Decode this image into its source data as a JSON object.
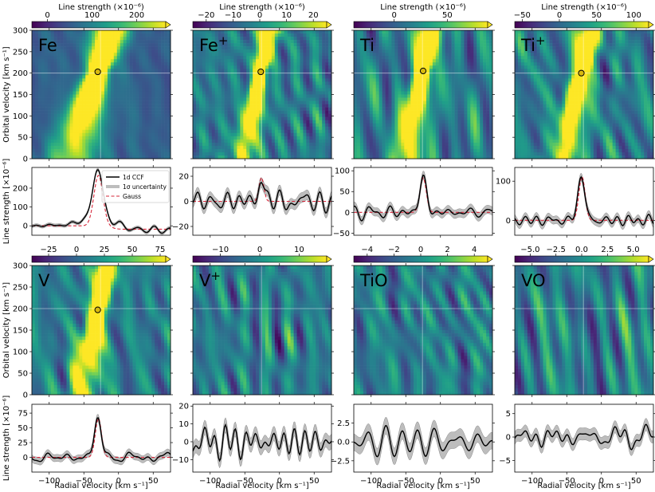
{
  "chart_data": {
    "type": "heatmap",
    "x_label": "Radial velocity [km s⁻¹]",
    "map_y_label": "Orbital velocity [km s⁻¹]",
    "ccf_y_label": "Line strength [×10⁻⁶]",
    "colorbar_label": "Line strength (×10⁻⁶)",
    "x_range": [
      -125,
      75
    ],
    "x_ticks": [
      -100,
      -50,
      0,
      50
    ],
    "map_y_range": [
      0,
      300
    ],
    "map_y_ticks": [
      0,
      50,
      100,
      150,
      200,
      250,
      300
    ],
    "reference_line": {
      "rv": -26,
      "kp": 200
    },
    "legend": [
      "1d CCF",
      "1σ uncertainty",
      "Gauss"
    ],
    "panels": [
      {
        "species": "Fe",
        "colorbar_range": [
          -35,
          265
        ],
        "colorbar_ticks": [
          0,
          100,
          200
        ],
        "ccf_y_range": [
          -50,
          310
        ],
        "ccf_y_ticks": [
          0,
          100,
          200
        ],
        "detection": true,
        "peak": {
          "rv": -30,
          "kp": 203
        },
        "signal_amplitude": 270,
        "signal_width": 7,
        "noise": 10,
        "band_error": 8,
        "gauss": {
          "amplitude": 268,
          "center": -29,
          "sigma": 6.5,
          "offset": -2
        }
      },
      {
        "species": "Fe+",
        "colorbar_range": [
          -25,
          25
        ],
        "colorbar_ticks": [
          -20,
          -10,
          0,
          10,
          20
        ],
        "ccf_y_range": [
          -27,
          27
        ],
        "ccf_y_ticks": [
          -20,
          0,
          20
        ],
        "detection": true,
        "peak": {
          "rv": -27,
          "kp": 203
        },
        "signal_amplitude": 19,
        "signal_width": 4,
        "noise": 5,
        "band_error": 4,
        "gauss": {
          "amplitude": 19,
          "center": -26,
          "sigma": 3.5,
          "offset": 0
        }
      },
      {
        "species": "Ti",
        "colorbar_range": [
          -38,
          88
        ],
        "colorbar_ticks": [
          0,
          50
        ],
        "ccf_y_range": [
          -55,
          108
        ],
        "ccf_y_ticks": [
          -50,
          0,
          50,
          100
        ],
        "detection": true,
        "peak": {
          "rv": -25,
          "kp": 205
        },
        "signal_amplitude": 83,
        "signal_width": 5,
        "noise": 10,
        "band_error": 10,
        "gauss": {
          "amplitude": 83,
          "center": -25,
          "sigma": 4.5,
          "offset": 0
        }
      },
      {
        "species": "Ti+",
        "colorbar_range": [
          -60,
          120
        ],
        "colorbar_ticks": [
          -50,
          0,
          50,
          100
        ],
        "ccf_y_range": [
          -38,
          135
        ],
        "ccf_y_ticks": [
          0,
          100
        ],
        "detection": true,
        "peak": {
          "rv": -29,
          "kp": 200
        },
        "signal_amplitude": 115,
        "signal_width": 5,
        "noise": 10,
        "band_error": 10,
        "gauss": {
          "amplitude": 112,
          "center": -28,
          "sigma": 4.5,
          "offset": 0
        }
      },
      {
        "species": "V",
        "colorbar_range": [
          -40,
          80
        ],
        "colorbar_ticks": [
          -25,
          0,
          25,
          50,
          75
        ],
        "ccf_y_range": [
          -25,
          90
        ],
        "ccf_y_ticks": [
          0,
          25,
          50,
          75
        ],
        "detection": true,
        "peak": {
          "rv": -30,
          "kp": 197
        },
        "signal_amplitude": 68,
        "signal_width": 5,
        "noise": 6,
        "band_error": 6,
        "gauss": {
          "amplitude": 66,
          "center": -29,
          "sigma": 4.5,
          "offset": 0
        }
      },
      {
        "species": "V+",
        "colorbar_range": [
          -17,
          17
        ],
        "colorbar_ticks": [
          -10,
          0,
          10
        ],
        "ccf_y_range": [
          -17,
          21
        ],
        "ccf_y_ticks": [
          -10,
          0,
          10,
          20
        ],
        "detection": false,
        "signal_amplitude": 0,
        "signal_width": 5,
        "noise": 6,
        "band_error": 4,
        "gauss": null
      },
      {
        "species": "TiO",
        "colorbar_range": [
          -5,
          5
        ],
        "colorbar_ticks": [
          -4,
          -2,
          0,
          2,
          4
        ],
        "ccf_y_range": [
          -4,
          5
        ],
        "ccf_y_ticks": [
          -2.5,
          0.0,
          2.5
        ],
        "detection": false,
        "signal_amplitude": 0,
        "signal_width": 5,
        "noise": 1.4,
        "band_error": 1.1,
        "gauss": null
      },
      {
        "species": "VO",
        "colorbar_range": [
          -6.5,
          6.5
        ],
        "colorbar_ticks": [
          -5.0,
          -2.5,
          0.0,
          2.5,
          5.0
        ],
        "ccf_y_range": [
          -7.5,
          7
        ],
        "ccf_y_ticks": [
          -5,
          0,
          5
        ],
        "detection": false,
        "signal_amplitude": 0,
        "signal_width": 5,
        "noise": 1.7,
        "band_error": 1.3,
        "gauss": null
      }
    ]
  }
}
